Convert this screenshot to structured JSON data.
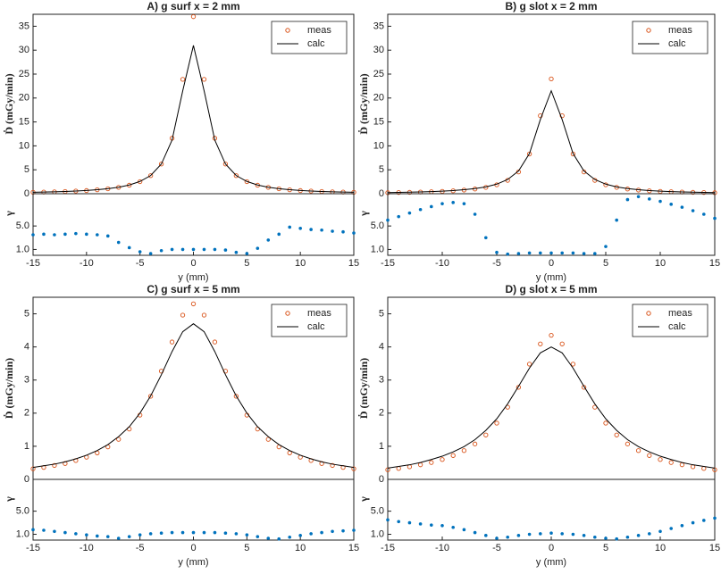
{
  "chart_data": [
    {
      "type": "line",
      "title": "A) g surf x = 2 mm",
      "ylabel": "Ḋ (mGy/min)",
      "x": [
        -15,
        -14,
        -13,
        -12,
        -11,
        -10,
        -9,
        -8,
        -7,
        -6,
        -5,
        -4,
        -3,
        -2,
        -1,
        0,
        1,
        2,
        3,
        4,
        5,
        6,
        7,
        8,
        9,
        10,
        11,
        12,
        13,
        14,
        15
      ],
      "series": [
        {
          "name": "meas",
          "color": "#d95319",
          "marker": "o",
          "values": [
            0.3,
            0.34,
            0.39,
            0.46,
            0.55,
            0.66,
            0.81,
            1.02,
            1.33,
            1.78,
            2.52,
            3.78,
            6.2,
            11.6,
            23.9,
            37,
            23.9,
            11.6,
            6.2,
            3.78,
            2.52,
            1.78,
            1.33,
            1.02,
            0.81,
            0.66,
            0.55,
            0.46,
            0.39,
            0.34,
            0.3
          ]
        },
        {
          "name": "calc",
          "color": "#000000",
          "linestyle": "-",
          "values": [
            0.31,
            0.35,
            0.4,
            0.47,
            0.56,
            0.68,
            0.83,
            1.05,
            1.35,
            1.82,
            2.56,
            3.8,
            6.2,
            11.2,
            21.5,
            31,
            21.5,
            11.2,
            6.2,
            3.8,
            2.56,
            1.82,
            1.35,
            1.05,
            0.83,
            0.68,
            0.56,
            0.47,
            0.4,
            0.35,
            0.31
          ]
        }
      ],
      "xlim": [
        -15,
        15
      ],
      "ylim": [
        0,
        37.5
      ],
      "yticks": [
        0,
        5,
        10,
        15,
        20,
        25,
        30,
        35
      ],
      "legend": "upper right"
    },
    {
      "type": "scatter",
      "ylabel": "γ",
      "xlabel": "y (mm)",
      "color": "#0072bd",
      "x": [
        -15,
        -14,
        -13,
        -12,
        -11,
        -10,
        -9,
        -8,
        -7,
        -6,
        -5,
        -4,
        -3,
        -2,
        -1,
        0,
        1,
        2,
        3,
        4,
        5,
        6,
        7,
        8,
        9,
        10,
        11,
        12,
        13,
        14,
        15
      ],
      "values": [
        3.5,
        3.6,
        3.5,
        3.6,
        3.7,
        3.6,
        3.5,
        3.3,
        2.2,
        1.3,
        0.6,
        0.3,
        0.8,
        1,
        1,
        1,
        1,
        1,
        0.9,
        0.5,
        0.3,
        1.2,
        2.6,
        3.6,
        4.8,
        4.6,
        4.4,
        4.3,
        4.1,
        4,
        3.8
      ],
      "xlim": [
        -15,
        15
      ],
      "ylim": [
        0,
        10.5
      ],
      "xticks": [
        -15,
        -10,
        -5,
        0,
        5,
        10,
        15
      ],
      "yticks": [
        {
          "value": 1,
          "label": "1.0"
        },
        {
          "value": 5,
          "label": "5.0"
        }
      ]
    },
    {
      "type": "line",
      "title": "B) g slot x = 2 mm",
      "ylabel": "Ḋ (mGy/min)",
      "x": [
        -15,
        -14,
        -13,
        -12,
        -11,
        -10,
        -9,
        -8,
        -7,
        -6,
        -5,
        -4,
        -3,
        -2,
        -1,
        0,
        1,
        2,
        3,
        4,
        5,
        6,
        7,
        8,
        9,
        10,
        11,
        12,
        13,
        14,
        15
      ],
      "series": [
        {
          "name": "meas",
          "color": "#d95319",
          "marker": "o",
          "values": [
            0.22,
            0.25,
            0.29,
            0.35,
            0.41,
            0.49,
            0.61,
            0.76,
            0.99,
            1.33,
            1.86,
            2.79,
            4.55,
            8.3,
            16.3,
            24,
            16.3,
            8.3,
            4.55,
            2.79,
            1.86,
            1.33,
            0.99,
            0.76,
            0.61,
            0.49,
            0.41,
            0.35,
            0.29,
            0.25,
            0.22
          ]
        },
        {
          "name": "calc",
          "color": "#000000",
          "linestyle": "-",
          "values": [
            0.24,
            0.28,
            0.32,
            0.38,
            0.45,
            0.54,
            0.66,
            0.83,
            1.07,
            1.43,
            2,
            2.97,
            4.76,
            8.4,
            15.5,
            21.5,
            15.5,
            8.4,
            4.76,
            2.97,
            2,
            1.43,
            1.07,
            0.83,
            0.66,
            0.54,
            0.45,
            0.38,
            0.32,
            0.28,
            0.24
          ]
        }
      ],
      "xlim": [
        -15,
        15
      ],
      "ylim": [
        0,
        37.5
      ],
      "yticks": [
        0,
        5,
        10,
        15,
        20,
        25,
        30,
        35
      ],
      "legend": "upper right"
    },
    {
      "type": "scatter",
      "ylabel": "γ",
      "xlabel": "y (mm)",
      "color": "#0072bd",
      "x": [
        -15,
        -14,
        -13,
        -12,
        -11,
        -10,
        -9,
        -8,
        -7,
        -6,
        -5,
        -4,
        -3,
        -2,
        -1,
        0,
        1,
        2,
        3,
        4,
        5,
        6,
        7,
        8,
        9,
        10,
        11,
        12,
        13,
        14,
        15
      ],
      "values": [
        6,
        6.6,
        7.2,
        7.8,
        8.3,
        8.8,
        9,
        8.8,
        7,
        3,
        0.5,
        0.2,
        0.3,
        0.4,
        0.4,
        0.4,
        0.4,
        0.4,
        0.3,
        0.3,
        1.5,
        6,
        9.5,
        10,
        9.6,
        9.2,
        8.7,
        8.2,
        7.6,
        7,
        6.3
      ],
      "xlim": [
        -15,
        15
      ],
      "ylim": [
        0,
        10.5
      ],
      "xticks": [
        -15,
        -10,
        -5,
        0,
        5,
        10,
        15
      ],
      "yticks": [
        {
          "value": 1,
          "label": "1.0"
        },
        {
          "value": 5,
          "label": "5.0"
        }
      ]
    },
    {
      "type": "line",
      "title": "C) g surf x = 5 mm",
      "ylabel": "Ḋ (mGy/min)",
      "x": [
        -15,
        -14,
        -13,
        -12,
        -11,
        -10,
        -9,
        -8,
        -7,
        -6,
        -5,
        -4,
        -3,
        -2,
        -1,
        0,
        1,
        2,
        3,
        4,
        5,
        6,
        7,
        8,
        9,
        10,
        11,
        12,
        13,
        14,
        15
      ],
      "series": [
        {
          "name": "meas",
          "color": "#d95319",
          "marker": "o",
          "values": [
            0.32,
            0.36,
            0.42,
            0.48,
            0.57,
            0.67,
            0.8,
            0.98,
            1.21,
            1.52,
            1.94,
            2.51,
            3.27,
            4.15,
            4.96,
            5.3,
            4.96,
            4.15,
            3.27,
            2.51,
            1.94,
            1.52,
            1.21,
            0.98,
            0.8,
            0.67,
            0.57,
            0.48,
            0.42,
            0.36,
            0.32
          ]
        },
        {
          "name": "calc",
          "color": "#000000",
          "linestyle": "-",
          "values": [
            0.36,
            0.41,
            0.46,
            0.53,
            0.62,
            0.73,
            0.87,
            1.05,
            1.29,
            1.59,
            2,
            2.52,
            3.16,
            3.86,
            4.46,
            4.7,
            4.46,
            3.86,
            3.16,
            2.52,
            2,
            1.59,
            1.29,
            1.05,
            0.87,
            0.73,
            0.62,
            0.53,
            0.46,
            0.41,
            0.36
          ]
        }
      ],
      "xlim": [
        -15,
        15
      ],
      "ylim": [
        0,
        5.5
      ],
      "yticks": [
        0,
        1,
        2,
        3,
        4,
        5
      ],
      "legend": "upper right"
    },
    {
      "type": "scatter",
      "ylabel": "γ",
      "xlabel": "y (mm)",
      "color": "#0072bd",
      "x": [
        -15,
        -14,
        -13,
        -12,
        -11,
        -10,
        -9,
        -8,
        -7,
        -6,
        -5,
        -4,
        -3,
        -2,
        -1,
        0,
        1,
        2,
        3,
        4,
        5,
        6,
        7,
        8,
        9,
        10,
        11,
        12,
        13,
        14,
        15
      ],
      "values": [
        1.8,
        1.7,
        1.5,
        1.3,
        1.1,
        0.9,
        0.7,
        0.6,
        0.3,
        0.6,
        0.9,
        1.1,
        1.2,
        1.3,
        1.3,
        1.3,
        1.3,
        1.3,
        1.2,
        1.1,
        0.9,
        0.6,
        0.3,
        0.2,
        0.5,
        0.8,
        1.1,
        1.3,
        1.5,
        1.6,
        1.7
      ],
      "xlim": [
        -15,
        15
      ],
      "ylim": [
        0,
        10.5
      ],
      "xticks": [
        -15,
        -10,
        -5,
        0,
        5,
        10,
        15
      ],
      "yticks": [
        {
          "value": 1,
          "label": "1.0"
        },
        {
          "value": 5,
          "label": "5.0"
        }
      ]
    },
    {
      "type": "line",
      "title": "D) g slot x = 5 mm",
      "ylabel": "Ḋ (mGy/min)",
      "x": [
        -15,
        -14,
        -13,
        -12,
        -11,
        -10,
        -9,
        -8,
        -7,
        -6,
        -5,
        -4,
        -3,
        -2,
        -1,
        0,
        1,
        2,
        3,
        4,
        5,
        6,
        7,
        8,
        9,
        10,
        11,
        12,
        13,
        14,
        15
      ],
      "series": [
        {
          "name": "meas",
          "color": "#d95319",
          "marker": "o",
          "values": [
            0.29,
            0.33,
            0.38,
            0.44,
            0.51,
            0.6,
            0.72,
            0.87,
            1.07,
            1.34,
            1.7,
            2.18,
            2.78,
            3.48,
            4.09,
            4.35,
            4.09,
            3.48,
            2.78,
            2.18,
            1.7,
            1.34,
            1.07,
            0.87,
            0.72,
            0.6,
            0.51,
            0.44,
            0.38,
            0.33,
            0.29
          ]
        },
        {
          "name": "calc",
          "color": "#000000",
          "linestyle": "-",
          "values": [
            0.34,
            0.39,
            0.44,
            0.51,
            0.6,
            0.7,
            0.83,
            0.99,
            1.2,
            1.48,
            1.83,
            2.28,
            2.81,
            3.36,
            3.82,
            4,
            3.82,
            3.36,
            2.81,
            2.28,
            1.83,
            1.48,
            1.2,
            0.99,
            0.83,
            0.7,
            0.6,
            0.51,
            0.44,
            0.39,
            0.34
          ]
        }
      ],
      "xlim": [
        -15,
        15
      ],
      "ylim": [
        0,
        5.5
      ],
      "yticks": [
        0,
        1,
        2,
        3,
        4,
        5
      ],
      "legend": "upper right"
    },
    {
      "type": "scatter",
      "ylabel": "γ",
      "xlabel": "y (mm)",
      "color": "#0072bd",
      "x": [
        -15,
        -14,
        -13,
        -12,
        -11,
        -10,
        -9,
        -8,
        -7,
        -6,
        -5,
        -4,
        -3,
        -2,
        -1,
        0,
        1,
        2,
        3,
        4,
        5,
        6,
        7,
        8,
        9,
        10,
        11,
        12,
        13,
        14,
        15
      ],
      "values": [
        3.5,
        3.2,
        3,
        2.8,
        2.6,
        2.5,
        2.2,
        1.8,
        1.3,
        0.8,
        0.3,
        0.5,
        0.8,
        1,
        1.1,
        1.2,
        1.1,
        1,
        0.8,
        0.5,
        0.3,
        0.2,
        0.5,
        0.8,
        1.1,
        1.5,
        2,
        2.5,
        3,
        3.4,
        3.8
      ],
      "xlim": [
        -15,
        15
      ],
      "ylim": [
        0,
        10.5
      ],
      "xticks": [
        -15,
        -10,
        -5,
        0,
        5,
        10,
        15
      ],
      "yticks": [
        {
          "value": 1,
          "label": "1.0"
        },
        {
          "value": 5,
          "label": "5.0"
        }
      ]
    }
  ]
}
